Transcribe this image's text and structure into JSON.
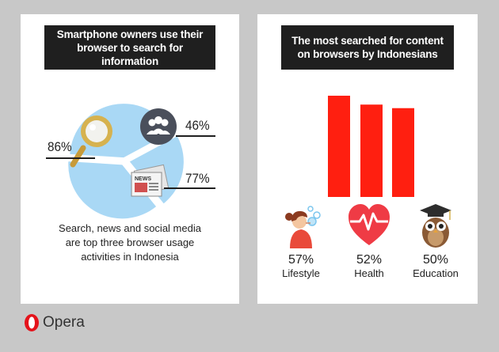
{
  "left_panel": {
    "title": "Smartphone owners use their browser to search for information",
    "labels": {
      "search": "86%",
      "social": "46%",
      "news": "77%"
    },
    "news_icon_text": "NEWS",
    "caption": [
      "Search, news and social media",
      "are top three browser usage",
      "activities in Indonesia"
    ]
  },
  "right_panel": {
    "title": "The most searched for content on browsers by Indonesians",
    "categories": [
      {
        "value": "57%",
        "label": "Lifestyle",
        "icon": "woman-blowing-bubbles-icon"
      },
      {
        "value": "52%",
        "label": "Health",
        "icon": "heartbeat-icon"
      },
      {
        "value": "50%",
        "label": "Education",
        "icon": "owl-graduate-icon"
      }
    ]
  },
  "brand": {
    "name": "Opera",
    "logo": "opera-logo"
  },
  "colors": {
    "background": "#c8c8c8",
    "card": "#ffffff",
    "header": "#1f1f1f",
    "pie": "#a9d8f5",
    "bar": "#ff1f10",
    "social_circle": "#4a4f5b",
    "magnifier": "#d6b24f",
    "heart": "#ef3b45",
    "opera_red": "#e4131b"
  },
  "chart_data": [
    {
      "type": "pie",
      "title": "Smartphone owners use their browser to search for information",
      "categories": [
        "Search",
        "Social media",
        "News"
      ],
      "values": [
        86,
        46,
        77
      ],
      "value_labels": [
        "86%",
        "46%",
        "77%"
      ]
    },
    {
      "type": "bar",
      "title": "The most searched for content on browsers by Indonesians",
      "categories": [
        "Lifestyle",
        "Health",
        "Education"
      ],
      "values": [
        57,
        52,
        50
      ],
      "value_labels": [
        "57%",
        "52%",
        "50%"
      ],
      "ylim": [
        0,
        57
      ]
    }
  ]
}
